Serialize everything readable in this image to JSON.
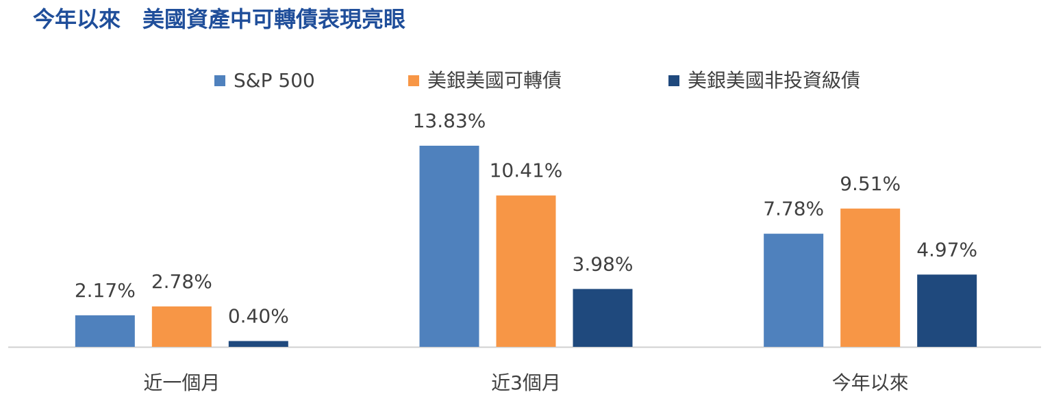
{
  "chart_data": {
    "type": "bar",
    "title": "今年以來　美國資產中可轉債表現亮眼",
    "categories": [
      "近一個月",
      "近3個月",
      "今年以來"
    ],
    "series": [
      {
        "name": "S&P 500",
        "color": "#4f81bd",
        "values": [
          2.17,
          13.83,
          7.78
        ],
        "value_labels": [
          "2.17%",
          "13.83%",
          "7.78%"
        ]
      },
      {
        "name": "美銀美國可轉債",
        "color": "#f79646",
        "values": [
          2.78,
          10.41,
          9.51
        ],
        "value_labels": [
          "2.78%",
          "10.41%",
          "9.51%"
        ]
      },
      {
        "name": "美銀美國非投資級債",
        "color": "#1f497d",
        "values": [
          0.4,
          3.98,
          4.97
        ],
        "value_labels": [
          "0.40%",
          "3.98%",
          "4.97%"
        ]
      }
    ],
    "legend": "top"
  }
}
